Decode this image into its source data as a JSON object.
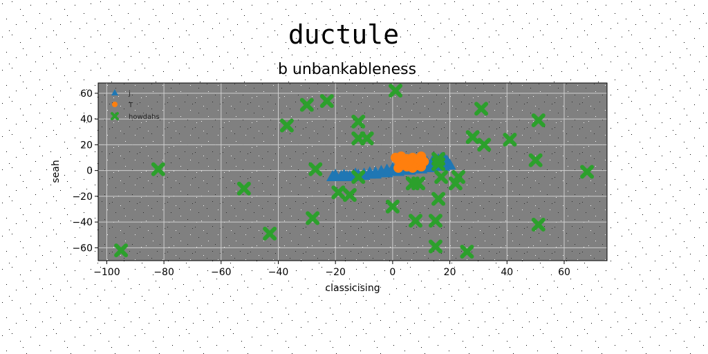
{
  "chart_data": {
    "type": "scatter",
    "title": "ductule",
    "subtitle": "b unbankableness",
    "xlabel": "classicising",
    "ylabel": "seah",
    "xlim": [
      -103,
      75
    ],
    "ylim": [
      -70,
      68
    ],
    "xticks": [
      -100,
      -80,
      -60,
      -40,
      -20,
      0,
      20,
      40,
      60
    ],
    "xtick_labels": [
      "−100",
      "−80",
      "−60",
      "−40",
      "−20",
      "0",
      "20",
      "40",
      "60"
    ],
    "yticks": [
      -60,
      -40,
      -20,
      0,
      20,
      40,
      60
    ],
    "ytick_labels": [
      "−60",
      "−40",
      "−20",
      "0",
      "20",
      "40",
      "60"
    ],
    "grid": true,
    "background": "#808080",
    "legend_position": "top-left",
    "series": [
      {
        "name": "j",
        "marker": "triangle",
        "color": "#1f77b4",
        "points": [
          [
            -21,
            -5
          ],
          [
            -20,
            -4
          ],
          [
            -18,
            -5
          ],
          [
            -17,
            -4
          ],
          [
            -15,
            -5
          ],
          [
            -13,
            -3
          ],
          [
            -12,
            -4
          ],
          [
            -10,
            -3
          ],
          [
            -8,
            -2
          ],
          [
            -6,
            -2
          ],
          [
            -4,
            -1
          ],
          [
            -2,
            0
          ],
          [
            0,
            1
          ],
          [
            2,
            2
          ],
          [
            4,
            3
          ],
          [
            6,
            4
          ],
          [
            8,
            5
          ],
          [
            10,
            6
          ],
          [
            12,
            6
          ],
          [
            14,
            7
          ],
          [
            16,
            8
          ],
          [
            17,
            9
          ],
          [
            18,
            9
          ],
          [
            19,
            7
          ],
          [
            20,
            4
          ],
          [
            18,
            3
          ],
          [
            16,
            3
          ],
          [
            14,
            2
          ],
          [
            12,
            2
          ],
          [
            10,
            1
          ],
          [
            8,
            1
          ],
          [
            6,
            0
          ],
          [
            4,
            0
          ],
          [
            2,
            -1
          ],
          [
            0,
            -1
          ],
          [
            -2,
            -2
          ],
          [
            -4,
            -2
          ],
          [
            -6,
            -3
          ],
          [
            -8,
            -3
          ],
          [
            -10,
            -4
          ],
          [
            -12,
            -4
          ],
          [
            -14,
            -5
          ],
          [
            -16,
            -5
          ],
          [
            -18,
            -5
          ],
          [
            -20,
            -5
          ]
        ]
      },
      {
        "name": "T",
        "marker": "circle",
        "color": "#ff7f0e",
        "points": [
          [
            1,
            10
          ],
          [
            2,
            8
          ],
          [
            3,
            11
          ],
          [
            4,
            7
          ],
          [
            5,
            9
          ],
          [
            6,
            6
          ],
          [
            7,
            10
          ],
          [
            8,
            8
          ],
          [
            9,
            4
          ],
          [
            10,
            11
          ],
          [
            11,
            7
          ],
          [
            3,
            4
          ],
          [
            5,
            3
          ],
          [
            7,
            2
          ],
          [
            10,
            3
          ],
          [
            2,
            2
          ],
          [
            8,
            6
          ],
          [
            6,
            8
          ],
          [
            4,
            5
          ],
          [
            9,
            9
          ]
        ]
      },
      {
        "name": "howdahs",
        "marker": "x",
        "color": "#2ca02c",
        "points": [
          [
            1,
            62
          ],
          [
            -23,
            54
          ],
          [
            -30,
            51
          ],
          [
            31,
            48
          ],
          [
            -12,
            38
          ],
          [
            -37,
            35
          ],
          [
            51,
            39
          ],
          [
            28,
            26
          ],
          [
            -12,
            25
          ],
          [
            -9,
            25
          ],
          [
            41,
            24
          ],
          [
            32,
            20
          ],
          [
            50,
            8
          ],
          [
            16,
            9
          ],
          [
            16,
            5
          ],
          [
            -82,
            1
          ],
          [
            -27,
            1
          ],
          [
            68,
            -1
          ],
          [
            -12,
            -5
          ],
          [
            17,
            -5
          ],
          [
            23,
            -5
          ],
          [
            22,
            -10
          ],
          [
            9,
            -10
          ],
          [
            7,
            -10
          ],
          [
            -52,
            -14
          ],
          [
            -19,
            -17
          ],
          [
            -15,
            -19
          ],
          [
            16,
            -22
          ],
          [
            0,
            -28
          ],
          [
            -28,
            -37
          ],
          [
            8,
            -39
          ],
          [
            15,
            -39
          ],
          [
            51,
            -42
          ],
          [
            -43,
            -49
          ],
          [
            15,
            -59
          ],
          [
            26,
            -63
          ],
          [
            -95,
            -62
          ]
        ]
      }
    ]
  }
}
